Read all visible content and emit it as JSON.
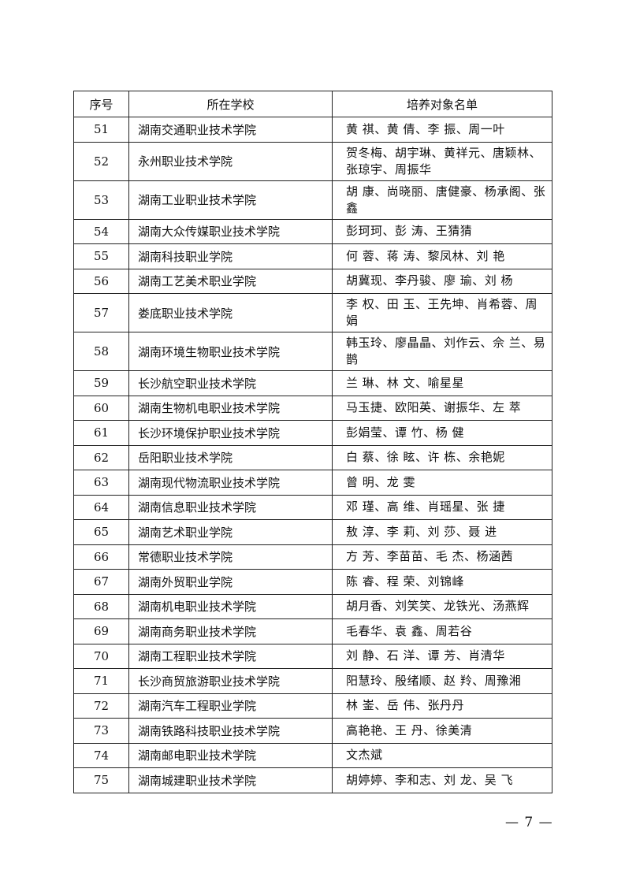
{
  "table": {
    "headers": [
      "序号",
      "所在学校",
      "培养对象名单"
    ],
    "rows": [
      {
        "no": "51",
        "school": "湖南交通职业技术学院",
        "names": "黄 祺、黄 倩、李 振、周一叶"
      },
      {
        "no": "52",
        "school": "永州职业技术学院",
        "names": "贺冬梅、胡宇琳、黄祥元、唐颖林、张琼宇、周振华"
      },
      {
        "no": "53",
        "school": "湖南工业职业技术学院",
        "names": "胡 康、尚晓丽、唐健豪、杨承阁、张 鑫"
      },
      {
        "no": "54",
        "school": "湖南大众传媒职业技术学院",
        "names": "彭珂珂、彭 涛、王猜猜"
      },
      {
        "no": "55",
        "school": "湖南科技职业学院",
        "names": "何 蓉、蒋 涛、黎凤林、刘 艳"
      },
      {
        "no": "56",
        "school": "湖南工艺美术职业学院",
        "names": "胡冀现、李丹骏、廖 瑜、刘 杨"
      },
      {
        "no": "57",
        "school": "娄底职业技术学院",
        "names": "李 权、田 玉、王先坤、肖希蓉、周 娟"
      },
      {
        "no": "58",
        "school": "湖南环境生物职业技术学院",
        "names": "韩玉玲、廖晶晶、刘作云、佘 兰、易 鹊"
      },
      {
        "no": "59",
        "school": "长沙航空职业技术学院",
        "names": "兰 琳、林 文、喻星星"
      },
      {
        "no": "60",
        "school": "湖南生物机电职业技术学院",
        "names": "马玉捷、欧阳英、谢振华、左 萃"
      },
      {
        "no": "61",
        "school": "长沙环境保护职业技术学院",
        "names": "彭娟莹、谭 竹、杨 健"
      },
      {
        "no": "62",
        "school": "岳阳职业技术学院",
        "names": "白 蔡、徐 眩、许 栋、余艳妮"
      },
      {
        "no": "63",
        "school": "湖南现代物流职业技术学院",
        "names": "曾 明、龙 雯"
      },
      {
        "no": "64",
        "school": "湖南信息职业技术学院",
        "names": "邓 瑾、高 维、肖瑶星、张 捷"
      },
      {
        "no": "65",
        "school": "湖南艺术职业学院",
        "names": "敖 淳、李 莉、刘 莎、聂 进"
      },
      {
        "no": "66",
        "school": "常德职业技术学院",
        "names": "方 芳、李苗苗、毛 杰、杨涵茜"
      },
      {
        "no": "67",
        "school": "湖南外贸职业学院",
        "names": "陈 睿、程 荣、刘锦峰"
      },
      {
        "no": "68",
        "school": "湖南机电职业技术学院",
        "names": "胡月香、刘笑笑、龙铁光、汤燕辉"
      },
      {
        "no": "69",
        "school": "湖南商务职业技术学院",
        "names": "毛春华、袁 鑫、周若谷"
      },
      {
        "no": "70",
        "school": "湖南工程职业技术学院",
        "names": "刘 静、石 洋、谭 芳、肖清华"
      },
      {
        "no": "71",
        "school": "长沙商贸旅游职业技术学院",
        "names": "阳慧玲、殷绪顺、赵 羚、周豫湘"
      },
      {
        "no": "72",
        "school": "湖南汽车工程职业学院",
        "names": "林 崟、岳 伟、张丹丹"
      },
      {
        "no": "73",
        "school": "湖南铁路科技职业技术学院",
        "names": "高艳艳、王 丹、徐美清"
      },
      {
        "no": "74",
        "school": "湖南邮电职业技术学院",
        "names": "文杰斌"
      },
      {
        "no": "75",
        "school": "湖南城建职业技术学院",
        "names": "胡婷婷、李和志、刘 龙、吴 飞"
      }
    ]
  },
  "footer": {
    "page_number": "— 7 —"
  }
}
